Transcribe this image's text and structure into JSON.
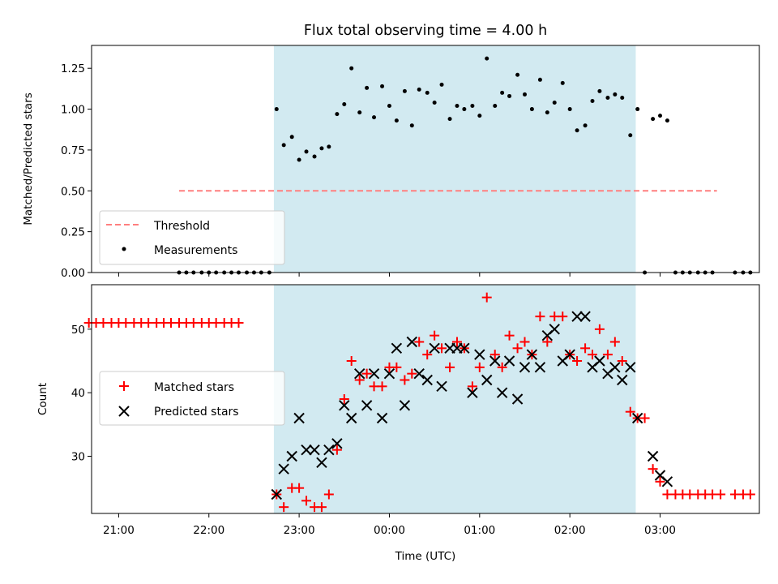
{
  "title": "Flux total observing time = 4.00 h",
  "colors": {
    "shade": "#add8e6",
    "threshold": "#ff7f7f",
    "matched": "#ff0000",
    "predicted": "#000000",
    "measurement": "#000000"
  },
  "chart_data": [
    {
      "id": "ratio",
      "type": "scatter",
      "ylabel": "Matched/Predicted stars",
      "ylim": [
        0,
        1.39
      ],
      "yticks": [
        "0.00",
        "0.25",
        "0.50",
        "0.75",
        "1.00",
        "1.25"
      ],
      "xlim": [
        -3.3,
        4.1
      ],
      "shaded_interval": [
        -1.28,
        2.73
      ],
      "legend": {
        "position": "lower-left",
        "threshold": "Threshold",
        "measurements": "Measurements"
      },
      "threshold": {
        "name": "Threshold",
        "y": 0.5,
        "x": [
          -2.33,
          3.63
        ]
      },
      "series": [
        {
          "name": "Measurements",
          "points": [
            [
              -2.33,
              0
            ],
            [
              -2.25,
              0
            ],
            [
              -2.17,
              0
            ],
            [
              -2.08,
              0
            ],
            [
              -2.0,
              0
            ],
            [
              -1.92,
              0
            ],
            [
              -1.83,
              0
            ],
            [
              -1.75,
              0
            ],
            [
              -1.67,
              0
            ],
            [
              -1.58,
              0
            ],
            [
              -1.5,
              0
            ],
            [
              -1.42,
              0
            ],
            [
              -1.33,
              0
            ],
            [
              -1.25,
              1.0
            ],
            [
              -1.17,
              0.78
            ],
            [
              -1.08,
              0.83
            ],
            [
              -1.0,
              0.69
            ],
            [
              -0.92,
              0.74
            ],
            [
              -0.83,
              0.71
            ],
            [
              -0.75,
              0.76
            ],
            [
              -0.67,
              0.77
            ],
            [
              -0.58,
              0.97
            ],
            [
              -0.5,
              1.03
            ],
            [
              -0.42,
              1.25
            ],
            [
              -0.33,
              0.98
            ],
            [
              -0.25,
              1.13
            ],
            [
              -0.17,
              0.95
            ],
            [
              -0.08,
              1.14
            ],
            [
              0.0,
              1.02
            ],
            [
              0.08,
              0.93
            ],
            [
              0.17,
              1.11
            ],
            [
              0.25,
              0.9
            ],
            [
              0.33,
              1.12
            ],
            [
              0.42,
              1.1
            ],
            [
              0.5,
              1.04
            ],
            [
              0.58,
              1.15
            ],
            [
              0.67,
              0.94
            ],
            [
              0.75,
              1.02
            ],
            [
              0.83,
              1.0
            ],
            [
              0.92,
              1.02
            ],
            [
              1.0,
              0.96
            ],
            [
              1.08,
              1.31
            ],
            [
              1.17,
              1.02
            ],
            [
              1.25,
              1.1
            ],
            [
              1.33,
              1.08
            ],
            [
              1.42,
              1.21
            ],
            [
              1.5,
              1.09
            ],
            [
              1.58,
              1.0
            ],
            [
              1.67,
              1.18
            ],
            [
              1.75,
              0.98
            ],
            [
              1.83,
              1.04
            ],
            [
              1.92,
              1.16
            ],
            [
              2.0,
              1.0
            ],
            [
              2.08,
              0.87
            ],
            [
              2.17,
              0.9
            ],
            [
              2.25,
              1.05
            ],
            [
              2.33,
              1.11
            ],
            [
              2.42,
              1.07
            ],
            [
              2.5,
              1.09
            ],
            [
              2.58,
              1.07
            ],
            [
              2.67,
              0.84
            ],
            [
              2.75,
              1.0
            ],
            [
              2.83,
              0
            ],
            [
              2.92,
              0.94
            ],
            [
              3.0,
              0.96
            ],
            [
              3.08,
              0.93
            ],
            [
              3.17,
              0
            ],
            [
              3.25,
              0
            ],
            [
              3.33,
              0
            ],
            [
              3.42,
              0
            ],
            [
              3.5,
              0
            ],
            [
              3.58,
              0
            ],
            [
              3.83,
              0
            ],
            [
              3.92,
              0
            ],
            [
              4.0,
              0
            ]
          ]
        }
      ]
    },
    {
      "id": "counts",
      "type": "scatter",
      "ylabel": "Count",
      "xlabel": "Time (UTC)",
      "ylim": [
        21,
        57
      ],
      "yticks": [
        30,
        40,
        50
      ],
      "xlim": [
        -3.3,
        4.1
      ],
      "xticks": [
        {
          "x": -3.0,
          "label": "21:00"
        },
        {
          "x": -2.0,
          "label": "22:00"
        },
        {
          "x": -1.0,
          "label": "23:00"
        },
        {
          "x": 0.0,
          "label": "00:00"
        },
        {
          "x": 1.0,
          "label": "01:00"
        },
        {
          "x": 2.0,
          "label": "02:00"
        },
        {
          "x": 3.0,
          "label": "03:00"
        }
      ],
      "shaded_interval": [
        -1.28,
        2.73
      ],
      "legend": {
        "position": "center-left",
        "matched": "Matched stars",
        "predicted": "Predicted stars"
      },
      "series": [
        {
          "name": "Matched stars",
          "marker": "plus",
          "points": [
            [
              -3.33,
              51
            ],
            [
              -3.25,
              51
            ],
            [
              -3.17,
              51
            ],
            [
              -3.08,
              51
            ],
            [
              -3.0,
              51
            ],
            [
              -2.92,
              51
            ],
            [
              -2.83,
              51
            ],
            [
              -2.75,
              51
            ],
            [
              -2.67,
              51
            ],
            [
              -2.58,
              51
            ],
            [
              -2.5,
              51
            ],
            [
              -2.42,
              51
            ],
            [
              -2.33,
              51
            ],
            [
              -2.25,
              51
            ],
            [
              -2.17,
              51
            ],
            [
              -2.08,
              51
            ],
            [
              -2.0,
              51
            ],
            [
              -1.92,
              51
            ],
            [
              -1.83,
              51
            ],
            [
              -1.75,
              51
            ],
            [
              -1.67,
              51
            ],
            [
              -1.25,
              24
            ],
            [
              -1.17,
              22
            ],
            [
              -1.08,
              25
            ],
            [
              -1.0,
              25
            ],
            [
              -0.92,
              23
            ],
            [
              -0.83,
              22
            ],
            [
              -0.75,
              22
            ],
            [
              -0.67,
              24
            ],
            [
              -0.58,
              31
            ],
            [
              -0.5,
              39
            ],
            [
              -0.42,
              45
            ],
            [
              -0.33,
              42
            ],
            [
              -0.25,
              43
            ],
            [
              -0.17,
              41
            ],
            [
              -0.08,
              41
            ],
            [
              0.0,
              44
            ],
            [
              0.08,
              44
            ],
            [
              0.17,
              42
            ],
            [
              0.25,
              43
            ],
            [
              0.33,
              48
            ],
            [
              0.42,
              46
            ],
            [
              0.5,
              49
            ],
            [
              0.58,
              47
            ],
            [
              0.67,
              44
            ],
            [
              0.75,
              48
            ],
            [
              0.83,
              47
            ],
            [
              0.92,
              41
            ],
            [
              1.0,
              44
            ],
            [
              1.08,
              55
            ],
            [
              1.17,
              46
            ],
            [
              1.25,
              44
            ],
            [
              1.33,
              49
            ],
            [
              1.42,
              47
            ],
            [
              1.5,
              48
            ],
            [
              1.58,
              46
            ],
            [
              1.67,
              52
            ],
            [
              1.75,
              48
            ],
            [
              1.83,
              52
            ],
            [
              1.92,
              52
            ],
            [
              2.0,
              46
            ],
            [
              2.08,
              45
            ],
            [
              2.17,
              47
            ],
            [
              2.25,
              46
            ],
            [
              2.33,
              50
            ],
            [
              2.42,
              46
            ],
            [
              2.5,
              48
            ],
            [
              2.58,
              45
            ],
            [
              2.67,
              37
            ],
            [
              2.75,
              36
            ],
            [
              2.83,
              36
            ],
            [
              2.92,
              28
            ],
            [
              3.0,
              26
            ],
            [
              3.08,
              24
            ],
            [
              3.17,
              24
            ],
            [
              3.25,
              24
            ],
            [
              3.33,
              24
            ],
            [
              3.42,
              24
            ],
            [
              3.5,
              24
            ],
            [
              3.58,
              24
            ],
            [
              3.67,
              24
            ],
            [
              3.83,
              24
            ],
            [
              3.92,
              24
            ],
            [
              4.0,
              24
            ]
          ]
        },
        {
          "name": "Predicted stars",
          "marker": "x",
          "points": [
            [
              -1.25,
              24
            ],
            [
              -1.17,
              28
            ],
            [
              -1.08,
              30
            ],
            [
              -1.0,
              36
            ],
            [
              -0.92,
              31
            ],
            [
              -0.83,
              31
            ],
            [
              -0.75,
              29
            ],
            [
              -0.67,
              31
            ],
            [
              -0.58,
              32
            ],
            [
              -0.5,
              38
            ],
            [
              -0.42,
              36
            ],
            [
              -0.33,
              43
            ],
            [
              -0.25,
              38
            ],
            [
              -0.17,
              43
            ],
            [
              -0.08,
              36
            ],
            [
              0.0,
              43
            ],
            [
              0.08,
              47
            ],
            [
              0.17,
              38
            ],
            [
              0.25,
              48
            ],
            [
              0.33,
              43
            ],
            [
              0.42,
              42
            ],
            [
              0.5,
              47
            ],
            [
              0.58,
              41
            ],
            [
              0.67,
              47
            ],
            [
              0.75,
              47
            ],
            [
              0.83,
              47
            ],
            [
              0.92,
              40
            ],
            [
              1.0,
              46
            ],
            [
              1.08,
              42
            ],
            [
              1.17,
              45
            ],
            [
              1.25,
              40
            ],
            [
              1.33,
              45
            ],
            [
              1.42,
              39
            ],
            [
              1.5,
              44
            ],
            [
              1.58,
              46
            ],
            [
              1.67,
              44
            ],
            [
              1.75,
              49
            ],
            [
              1.83,
              50
            ],
            [
              1.92,
              45
            ],
            [
              2.0,
              46
            ],
            [
              2.08,
              52
            ],
            [
              2.17,
              52
            ],
            [
              2.25,
              44
            ],
            [
              2.33,
              45
            ],
            [
              2.42,
              43
            ],
            [
              2.5,
              44
            ],
            [
              2.58,
              42
            ],
            [
              2.67,
              44
            ],
            [
              2.75,
              36
            ],
            [
              2.92,
              30
            ],
            [
              3.0,
              27
            ],
            [
              3.08,
              26
            ]
          ]
        }
      ]
    }
  ]
}
